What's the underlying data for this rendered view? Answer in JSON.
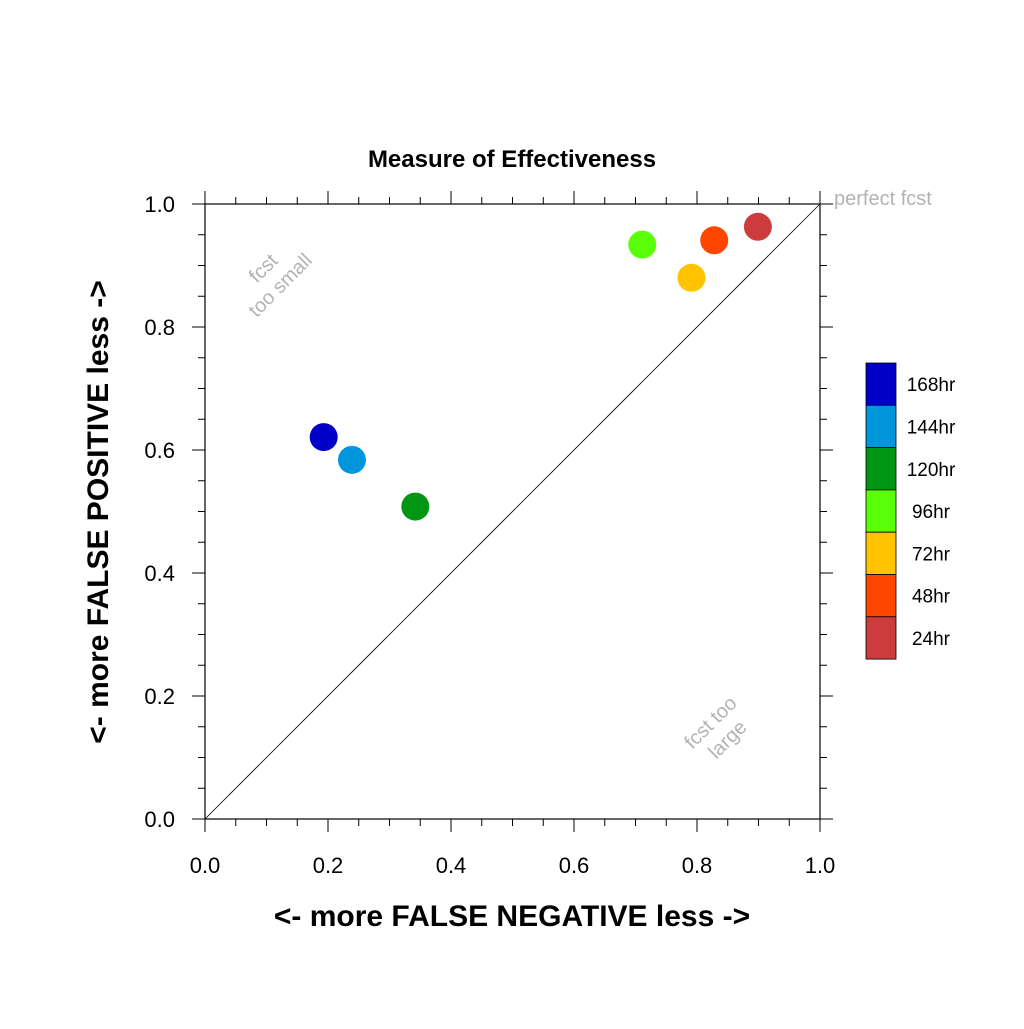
{
  "chart_data": {
    "type": "scatter",
    "title": "Measure of Effectiveness",
    "xlabel": "<- more   FALSE NEGATIVE   less ->",
    "ylabel": "<- more   FALSE POSITIVE   less ->",
    "xlim": [
      0.0,
      1.0
    ],
    "ylim": [
      0.0,
      1.0
    ],
    "xticks": [
      "0.0",
      "0.2",
      "0.4",
      "0.6",
      "0.8",
      "1.0"
    ],
    "yticks": [
      "0.0",
      "0.2",
      "0.4",
      "0.6",
      "0.8",
      "1.0"
    ],
    "grid": false,
    "reference_line": {
      "from": [
        0.0,
        0.0
      ],
      "to": [
        1.0,
        1.0
      ]
    },
    "annotations": {
      "perfect": "perfect fcst",
      "too_small_line1": "fcst",
      "too_small_line2": "too small",
      "too_large_line1": "fcst too",
      "too_large_line2": "large"
    },
    "series": [
      {
        "name": "168hr",
        "color": "#0000c8",
        "x": 0.193,
        "y": 0.621
      },
      {
        "name": "144hr",
        "color": "#0096dc",
        "x": 0.239,
        "y": 0.584
      },
      {
        "name": "120hr",
        "color": "#009614",
        "x": 0.342,
        "y": 0.508
      },
      {
        "name": "96hr",
        "color": "#5aff0a",
        "x": 0.711,
        "y": 0.934
      },
      {
        "name": "72hr",
        "color": "#ffc300",
        "x": 0.791,
        "y": 0.88
      },
      {
        "name": "48hr",
        "color": "#ff4600",
        "x": 0.828,
        "y": 0.941
      },
      {
        "name": "24hr",
        "color": "#cd3c3c",
        "x": 0.899,
        "y": 0.963
      }
    ],
    "legend": {
      "position": "right",
      "order": [
        "168hr",
        "144hr",
        "120hr",
        "96hr",
        "72hr",
        "48hr",
        "24hr"
      ]
    }
  }
}
